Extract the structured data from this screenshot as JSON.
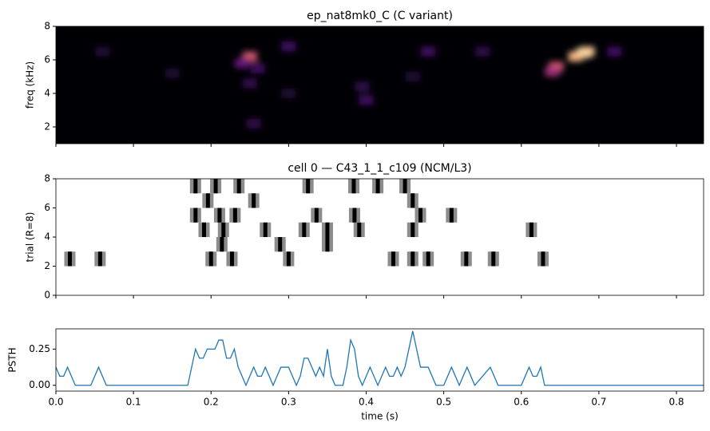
{
  "chart_data": [
    {
      "type": "heatmap",
      "title": "ep_nat8mk0_C  (C variant)",
      "y_label": "freq (kHz)",
      "xlim": [
        0,
        0.835
      ],
      "xticks": [
        0,
        0.1,
        0.2,
        0.3,
        0.4,
        0.5,
        0.6,
        0.7,
        0.8
      ],
      "ylim": [
        1,
        8
      ],
      "yticks": [
        2,
        4,
        6,
        8
      ],
      "x": [
        0.25,
        0.24,
        0.26,
        0.25,
        0.255,
        0.3,
        0.68,
        0.67,
        0.685,
        0.645,
        0.64,
        0.4,
        0.395,
        0.48,
        0.55,
        0.72,
        0.06,
        0.15,
        0.3,
        0.46
      ],
      "y": [
        6.2,
        5.8,
        5.5,
        4.6,
        2.2,
        6.8,
        6.4,
        6.2,
        6.5,
        5.6,
        5.3,
        3.6,
        4.4,
        6.5,
        6.5,
        6.5,
        6.5,
        5.2,
        4.0,
        5.0
      ],
      "z": [
        0.6,
        0.3,
        0.2,
        0.15,
        0.15,
        0.2,
        1.0,
        0.85,
        0.9,
        0.6,
        0.45,
        0.2,
        0.15,
        0.2,
        0.15,
        0.2,
        0.1,
        0.1,
        0.1,
        0.1
      ]
    },
    {
      "type": "raster",
      "title": "cell 0 — C43_1_1_c109 (NCM/L3)",
      "y_label": "trial (R=8)",
      "xlim": [
        0,
        0.835
      ],
      "xticks": [
        0,
        0.1,
        0.2,
        0.3,
        0.4,
        0.5,
        0.6,
        0.7,
        0.8
      ],
      "ylim": [
        0,
        8
      ],
      "yticks": [
        0,
        2,
        4,
        6,
        8
      ],
      "spikes": [
        [],
        [],
        [
          0.018,
          0.057,
          0.2,
          0.227,
          0.3,
          0.435,
          0.46,
          0.48,
          0.529,
          0.564,
          0.628
        ],
        [
          0.214,
          0.289,
          0.35
        ],
        [
          0.191,
          0.216,
          0.27,
          0.32,
          0.35,
          0.391,
          0.46,
          0.613
        ],
        [
          0.18,
          0.211,
          0.231,
          0.336,
          0.385,
          0.47,
          0.51
        ],
        [
          0.196,
          0.255,
          0.46
        ],
        [
          0.18,
          0.206,
          0.236,
          0.325,
          0.384,
          0.415,
          0.45
        ]
      ]
    },
    {
      "type": "line",
      "y_label": "PSTH",
      "x_label": "time (s)",
      "color": "#1f77b4",
      "xlim": [
        0,
        0.835
      ],
      "xticks": [
        {
          "value": 0,
          "label": "0.0"
        },
        0.1,
        0.2,
        0.3,
        0.4,
        0.5,
        0.6,
        0.7,
        0.8
      ],
      "ylim": [
        -0.04,
        0.39
      ],
      "yticks": [
        {
          "value": 0,
          "label": "0.00"
        },
        0.25
      ],
      "x": [
        0,
        0.005,
        0.01,
        0.015,
        0.02,
        0.025,
        0.045,
        0.055,
        0.065,
        0.17,
        0.18,
        0.185,
        0.19,
        0.195,
        0.205,
        0.21,
        0.215,
        0.22,
        0.225,
        0.23,
        0.235,
        0.24,
        0.245,
        0.25,
        0.255,
        0.26,
        0.265,
        0.27,
        0.275,
        0.28,
        0.29,
        0.3,
        0.305,
        0.31,
        0.315,
        0.32,
        0.325,
        0.33,
        0.335,
        0.34,
        0.345,
        0.35,
        0.355,
        0.36,
        0.37,
        0.375,
        0.38,
        0.385,
        0.39,
        0.395,
        0.4,
        0.405,
        0.41,
        0.415,
        0.42,
        0.425,
        0.43,
        0.435,
        0.44,
        0.445,
        0.45,
        0.46,
        0.465,
        0.47,
        0.48,
        0.49,
        0.5,
        0.51,
        0.515,
        0.52,
        0.53,
        0.535,
        0.54,
        0.56,
        0.565,
        0.57,
        0.6,
        0.61,
        0.615,
        0.62,
        0.625,
        0.63,
        0.835
      ],
      "values": [
        0.125,
        0.0625,
        0.0625,
        0.125,
        0.0625,
        0,
        0,
        0.125,
        0,
        0,
        0.25,
        0.1875,
        0.1875,
        0.25,
        0.25,
        0.3125,
        0.3125,
        0.1875,
        0.1875,
        0.25,
        0.125,
        0.0625,
        0,
        0.0625,
        0.125,
        0.0625,
        0.0625,
        0.125,
        0.0625,
        0,
        0.125,
        0.125,
        0.0625,
        0,
        0.0625,
        0.1875,
        0.1875,
        0.125,
        0.0625,
        0.125,
        0.0625,
        0.25,
        0.0625,
        0,
        0,
        0.125,
        0.3125,
        0.25,
        0.0625,
        0,
        0.0625,
        0.125,
        0.0625,
        0,
        0.0625,
        0.125,
        0.0625,
        0.0625,
        0.125,
        0.0625,
        0.125,
        0.375,
        0.25,
        0.125,
        0.125,
        0,
        0,
        0.125,
        0.0625,
        0,
        0.125,
        0.0625,
        0,
        0.125,
        0.0625,
        0,
        0,
        0.125,
        0.0625,
        0.0625,
        0.125,
        0,
        0
      ]
    }
  ]
}
